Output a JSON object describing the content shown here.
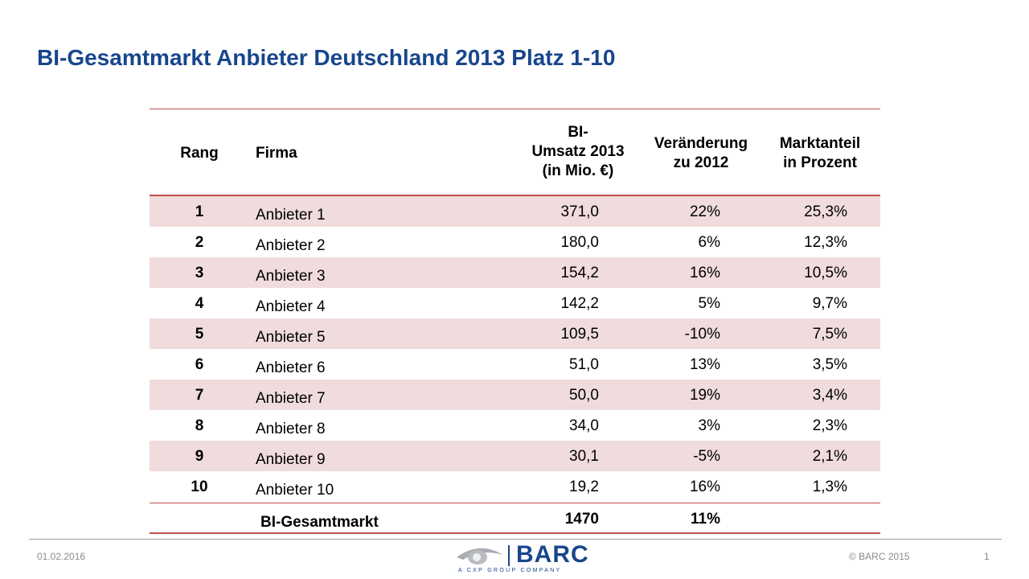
{
  "title": "BI-Gesamtmarkt Anbieter Deutschland 2013 Platz 1-10",
  "table": {
    "headers": {
      "rank": "Rang",
      "firm": "Firma",
      "revenue_l1": "BI-",
      "revenue_l2": "Umsatz 2013",
      "revenue_l3": "(in Mio. €)",
      "change_l1": "Veränderung",
      "change_l2": "zu 2012",
      "share_l1": "Marktanteil",
      "share_l2": "in Prozent"
    },
    "rows": [
      {
        "rank": "1",
        "firm": "Anbieter  1",
        "revenue": "371,0",
        "change": "22%",
        "share": "25,3%"
      },
      {
        "rank": "2",
        "firm": "Anbieter  2",
        "revenue": "180,0",
        "change": "6%",
        "share": "12,3%"
      },
      {
        "rank": "3",
        "firm": "Anbieter  3",
        "revenue": "154,2",
        "change": "16%",
        "share": "10,5%"
      },
      {
        "rank": "4",
        "firm": "Anbieter  4",
        "revenue": "142,2",
        "change": "5%",
        "share": "9,7%"
      },
      {
        "rank": "5",
        "firm": "Anbieter  5",
        "revenue": "109,5",
        "change": "-10%",
        "share": "7,5%"
      },
      {
        "rank": "6",
        "firm": "Anbieter  6",
        "revenue": "51,0",
        "change": "13%",
        "share": "3,5%"
      },
      {
        "rank": "7",
        "firm": "Anbieter  7",
        "revenue": "50,0",
        "change": "19%",
        "share": "3,4%"
      },
      {
        "rank": "8",
        "firm": "Anbieter  8",
        "revenue": "34,0",
        "change": "3%",
        "share": "2,3%"
      },
      {
        "rank": "9",
        "firm": "Anbieter  9",
        "revenue": "30,1",
        "change": "-5%",
        "share": "2,1%"
      },
      {
        "rank": "10",
        "firm": "Anbieter  10",
        "revenue": "19,2",
        "change": "16%",
        "share": "1,3%"
      }
    ],
    "total": {
      "firm": "BI-Gesamtmarkt",
      "revenue": "1470",
      "change": "11%"
    }
  },
  "footer": {
    "date": "01.02.2016",
    "copyright": "© BARC 2015",
    "page": "1",
    "logo_text": "BARC",
    "logo_sub": "A CXP GROUP COMPANY"
  },
  "colors": {
    "title": "#17468c",
    "rule": "#c0504d",
    "row_shade": "#f0dcdc"
  }
}
